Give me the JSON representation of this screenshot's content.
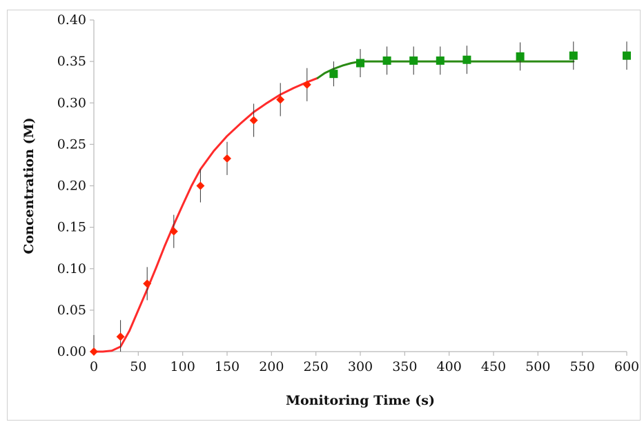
{
  "chart_data": {
    "type": "scatter",
    "title": "",
    "xlabel": "Monitoring Time (s)",
    "ylabel": "Concentration (M)",
    "xlim": [
      0,
      600
    ],
    "ylim": [
      0,
      0.4
    ],
    "x_ticks": [
      0,
      50,
      100,
      150,
      200,
      250,
      300,
      350,
      400,
      450,
      500,
      550,
      600
    ],
    "y_ticks": [
      0,
      0.05,
      0.1,
      0.15,
      0.2,
      0.25,
      0.3,
      0.35,
      0.4
    ],
    "y_tick_labels": [
      "0.00",
      "0.05",
      "0.10",
      "0.15",
      "0.20",
      "0.25",
      "0.30",
      "0.35",
      "0.40"
    ],
    "grid": false,
    "legend": "none",
    "series": [
      {
        "marker": "diamond",
        "color": "#ff2200",
        "points": [
          {
            "x": 0,
            "y": 0.0,
            "err": 0.02
          },
          {
            "x": 30,
            "y": 0.018,
            "err": 0.02
          },
          {
            "x": 60,
            "y": 0.082,
            "err": 0.02
          },
          {
            "x": 90,
            "y": 0.145,
            "err": 0.02
          },
          {
            "x": 120,
            "y": 0.2,
            "err": 0.02
          },
          {
            "x": 150,
            "y": 0.233,
            "err": 0.02
          },
          {
            "x": 180,
            "y": 0.279,
            "err": 0.02
          },
          {
            "x": 210,
            "y": 0.304,
            "err": 0.02
          },
          {
            "x": 240,
            "y": 0.322,
            "err": 0.02
          }
        ]
      },
      {
        "marker": "square",
        "color": "#119911",
        "points": [
          {
            "x": 270,
            "y": 0.335,
            "err": 0.015
          },
          {
            "x": 300,
            "y": 0.348,
            "err": 0.017
          },
          {
            "x": 330,
            "y": 0.351,
            "err": 0.017
          },
          {
            "x": 360,
            "y": 0.351,
            "err": 0.017
          },
          {
            "x": 390,
            "y": 0.351,
            "err": 0.017
          },
          {
            "x": 420,
            "y": 0.352,
            "err": 0.017
          },
          {
            "x": 480,
            "y": 0.356,
            "err": 0.017
          },
          {
            "x": 540,
            "y": 0.357,
            "err": 0.017
          },
          {
            "x": 600,
            "y": 0.357,
            "err": 0.017
          }
        ]
      }
    ],
    "fit_lines": [
      {
        "color": "#ff2b2b",
        "points": [
          [
            0,
            0.0
          ],
          [
            10,
            0.0
          ],
          [
            20,
            0.001
          ],
          [
            30,
            0.006
          ],
          [
            40,
            0.025
          ],
          [
            50,
            0.05
          ],
          [
            60,
            0.075
          ],
          [
            70,
            0.101
          ],
          [
            80,
            0.128
          ],
          [
            90,
            0.153
          ],
          [
            100,
            0.177
          ],
          [
            110,
            0.2
          ],
          [
            120,
            0.22
          ],
          [
            135,
            0.242
          ],
          [
            150,
            0.26
          ],
          [
            165,
            0.275
          ],
          [
            180,
            0.289
          ],
          [
            195,
            0.3
          ],
          [
            210,
            0.31
          ],
          [
            225,
            0.318
          ],
          [
            240,
            0.325
          ],
          [
            252,
            0.33
          ]
        ]
      },
      {
        "color": "#2a8a14",
        "points": [
          [
            252,
            0.33
          ],
          [
            260,
            0.336
          ],
          [
            270,
            0.341
          ],
          [
            280,
            0.345
          ],
          [
            290,
            0.348
          ],
          [
            300,
            0.35
          ],
          [
            320,
            0.35
          ],
          [
            400,
            0.35
          ],
          [
            540,
            0.35
          ]
        ]
      }
    ]
  }
}
